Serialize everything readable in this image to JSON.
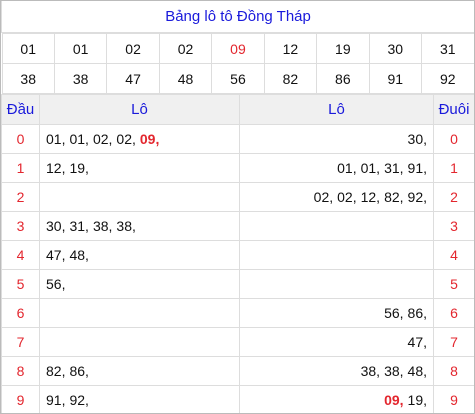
{
  "title": "Bảng lô tô Đồng Tháp",
  "highlight_color": "#e3262e",
  "numbers": [
    [
      "01",
      "01",
      "02",
      "02",
      {
        "text": "09",
        "highlight": true
      },
      "12",
      "19",
      "30",
      "31"
    ],
    [
      "38",
      "38",
      "47",
      "48",
      "56",
      "82",
      "86",
      "91",
      "92"
    ]
  ],
  "header": [
    "Đầu",
    "Lô",
    "Lô",
    "Đuôi"
  ],
  "rows": [
    {
      "head": "0",
      "left": [
        "01,",
        "01,",
        "02,",
        "02,",
        {
          "text": "09,",
          "highlight": true
        }
      ],
      "right": [
        "30,"
      ],
      "tail": "0"
    },
    {
      "head": "1",
      "left": [
        "12,",
        "19,"
      ],
      "right": [
        "01,",
        "01,",
        "31,",
        "91,"
      ],
      "tail": "1"
    },
    {
      "head": "2",
      "left": [],
      "right": [
        "02,",
        "02,",
        "12,",
        "82,",
        "92,"
      ],
      "tail": "2"
    },
    {
      "head": "3",
      "left": [
        "30,",
        "31,",
        "38,",
        "38,"
      ],
      "right": [],
      "tail": "3"
    },
    {
      "head": "4",
      "left": [
        "47,",
        "48,"
      ],
      "right": [],
      "tail": "4"
    },
    {
      "head": "5",
      "left": [
        "56,"
      ],
      "right": [],
      "tail": "5"
    },
    {
      "head": "6",
      "left": [],
      "right": [
        "56,",
        "86,"
      ],
      "tail": "6"
    },
    {
      "head": "7",
      "left": [],
      "right": [
        "47,"
      ],
      "tail": "7"
    },
    {
      "head": "8",
      "left": [
        "82,",
        "86,"
      ],
      "right": [
        "38,",
        "38,",
        "48,"
      ],
      "tail": "8"
    },
    {
      "head": "9",
      "left": [
        "91,",
        "92,"
      ],
      "right": [
        {
          "text": "09,",
          "highlight": true
        },
        "19,"
      ],
      "tail": "9"
    }
  ]
}
